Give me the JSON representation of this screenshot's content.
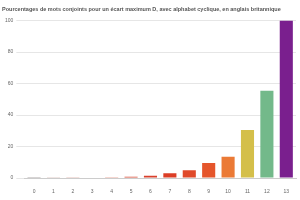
{
  "chart_data": {
    "type": "bar",
    "title": "Pourcentages de mots conjoints pour un écart maximum D, avec alphabet cyclique, en anglais britannique",
    "categories": [
      "0",
      "1",
      "2",
      "3",
      "4",
      "5",
      "6",
      "7",
      "8",
      "9",
      "10",
      "11",
      "12",
      "13"
    ],
    "values": [
      0.05,
      0.1,
      0.2,
      0.3,
      0.5,
      0.8,
      1.5,
      3,
      5,
      9.5,
      13.5,
      30.5,
      55.5,
      100
    ],
    "colors": [
      "#b0aaaa",
      "#c49a94",
      "#c9837a",
      "#cf6f5e",
      "#d55b45",
      "#d74a35",
      "#d9402c",
      "#dc3e26",
      "#e04a2a",
      "#e5562c",
      "#eb7a36",
      "#d4bf4a",
      "#73b98a",
      "#7a1f8e"
    ],
    "ylim": [
      0,
      100
    ],
    "yticks": [
      0,
      20,
      40,
      60,
      80,
      100
    ],
    "grid": true
  }
}
